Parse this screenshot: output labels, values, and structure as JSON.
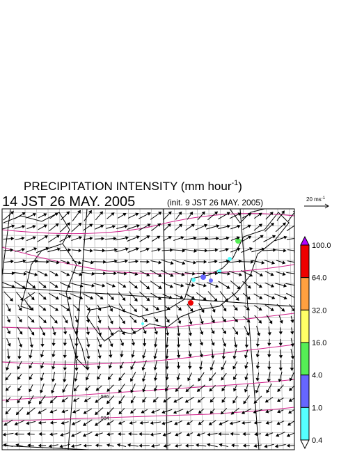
{
  "header": {
    "title": "PRECIPITATION INTENSITY (mm hour",
    "title_sup": "-1",
    "title_end": ")",
    "time": "14 JST 26 MAY. 2005",
    "init": "(init. 9 JST 26 MAY. 2005)"
  },
  "vector_scale": {
    "label": "20 ms",
    "sup": "-1"
  },
  "map": {
    "contour_labels": [
      "586",
      "584"
    ]
  },
  "colorbar": {
    "labels": [
      "100.0",
      "64.0",
      "32.0",
      "16.0",
      "4.0",
      "1.0",
      "0.4"
    ],
    "colors": [
      "#ee0000",
      "#ffa040",
      "#ffff66",
      "#55ee55",
      "#6666ff",
      "#55ffff"
    ],
    "over_color": "#b000ff",
    "under_color": "#ffffff"
  }
}
